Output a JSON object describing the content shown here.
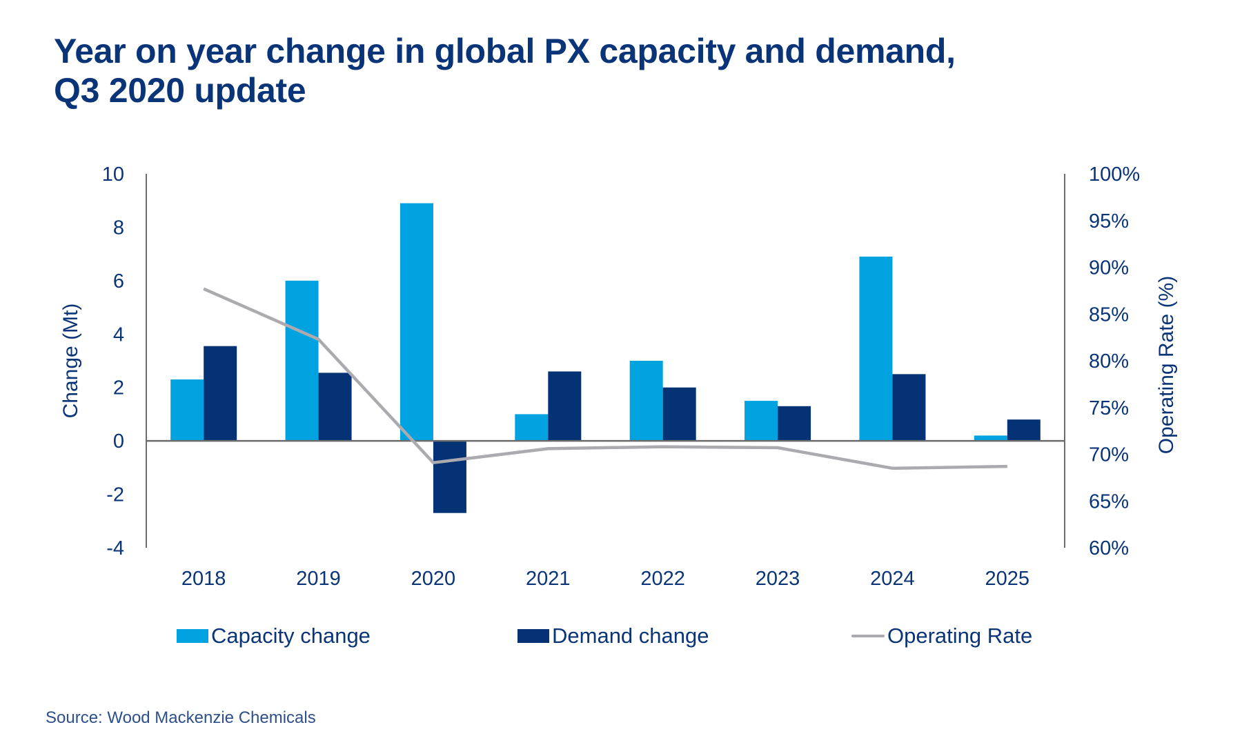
{
  "title_lines": [
    "Year on year change in global PX capacity and demand,",
    "Q3 2020 update"
  ],
  "source": "Source: Wood Mackenzie Chemicals",
  "colors": {
    "capacity": "#00a3e0",
    "demand": "#053275",
    "operating_rate": "#aaaaaf",
    "text": "#0a3478",
    "axis": "#6b6b6b"
  },
  "chart_data": {
    "type": "bar",
    "title": "Year on year change in global PX capacity and demand, Q3 2020 update",
    "categories": [
      "2018",
      "2019",
      "2020",
      "2021",
      "2022",
      "2023",
      "2024",
      "2025"
    ],
    "series": [
      {
        "name": "Capacity change",
        "type": "bar",
        "axis": "left",
        "values": [
          2.3,
          6.0,
          8.9,
          1.0,
          3.0,
          1.5,
          6.9,
          0.2
        ]
      },
      {
        "name": "Demand change",
        "type": "bar",
        "axis": "left",
        "values": [
          3.55,
          2.55,
          -2.7,
          2.6,
          2.0,
          1.3,
          2.5,
          0.8
        ]
      },
      {
        "name": "Operating Rate",
        "type": "line",
        "axis": "right",
        "values": [
          87.7,
          82.3,
          69.1,
          70.6,
          70.8,
          70.7,
          68.5,
          68.7
        ]
      }
    ],
    "ylabel": "Change (Mt)",
    "ylim": [
      -4,
      10
    ],
    "yticks": [
      "10",
      "8",
      "6",
      "4",
      "2",
      "0",
      "-2",
      "-4"
    ],
    "y_tick_values": [
      10,
      8,
      6,
      4,
      2,
      0,
      -2,
      -4
    ],
    "y2label": "Operating Rate (%)",
    "y2lim": [
      60,
      100
    ],
    "y2ticks": [
      "100%",
      "95%",
      "90%",
      "85%",
      "80%",
      "75%",
      "70%",
      "65%",
      "60%"
    ],
    "y2_tick_values": [
      100,
      95,
      90,
      85,
      80,
      75,
      70,
      65,
      60
    ],
    "xlabel": "",
    "grid": false,
    "legend": {
      "position": "bottom",
      "entries": [
        "Capacity change",
        "Demand change",
        "Operating Rate"
      ]
    }
  }
}
